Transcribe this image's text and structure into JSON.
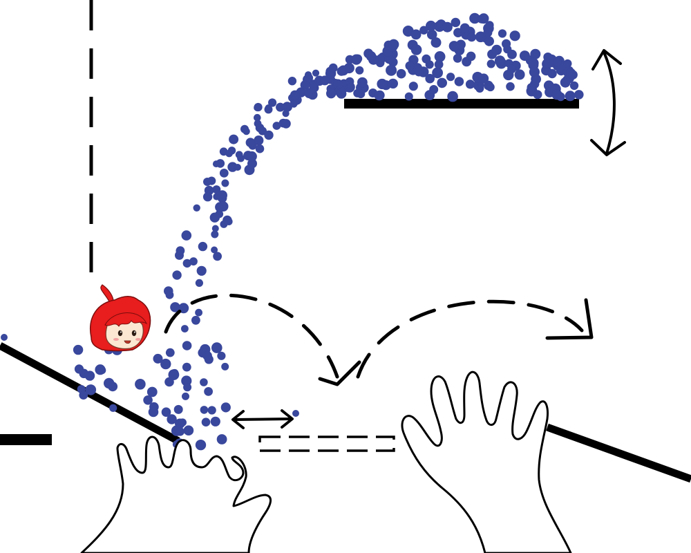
{
  "scene": {
    "background_color": "#ffffff",
    "particle_color": "#39479c",
    "platform_color": "#000000",
    "character_hair_color": "#e81d1d",
    "character_skin_color": "#fbe7d2",
    "particle_count": 330,
    "elements": {
      "left_wall": "dashed-vertical-wall",
      "top_platform": "solid-platform",
      "left_ramp": "solid-ramp",
      "right_ramp": "solid-ramp",
      "left_ledge": "solid-ledge",
      "ghost_platform": "dashed-outline-platform",
      "character": "red-haired-chibi-face",
      "hands": [
        "left-hand-outline",
        "right-hand-outline"
      ],
      "arrows": [
        "vertical-double-arrow",
        "horizontal-double-arrow",
        "dashed-curved-arrow-left",
        "dashed-curved-arrow-right"
      ]
    }
  }
}
